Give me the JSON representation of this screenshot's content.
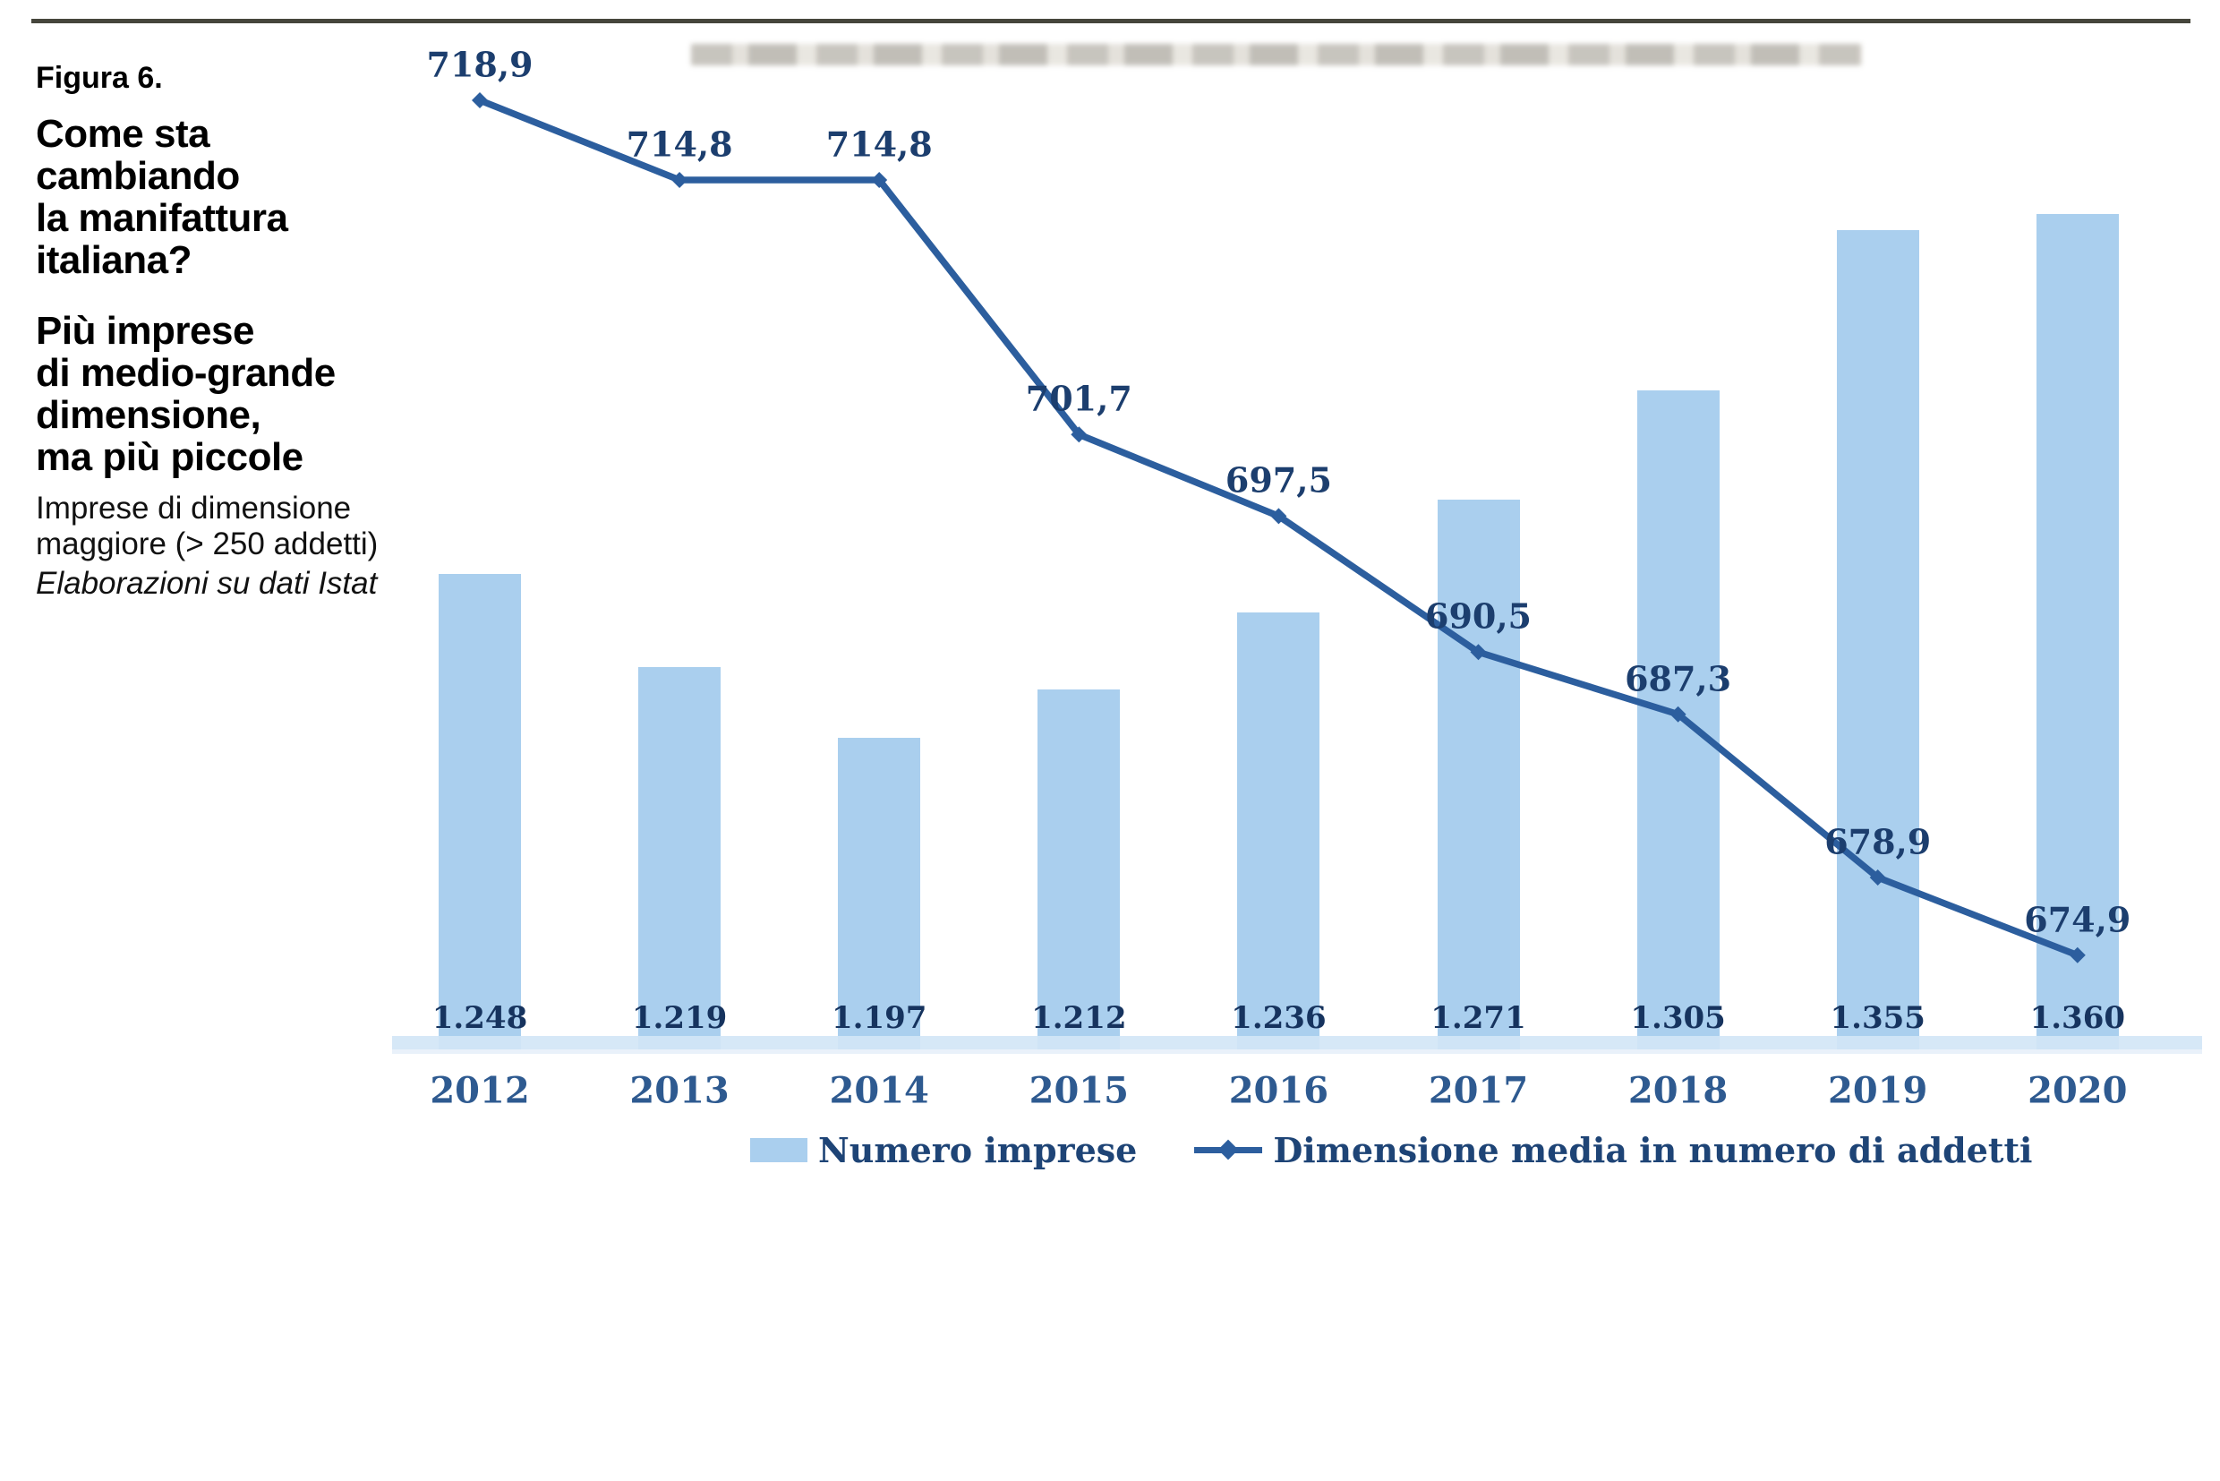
{
  "figure": {
    "label": "Figura 6.",
    "title_1": "Come sta\ncambiando\nla manifattura\nitaliana?",
    "title_2": "Più imprese\ndi medio-grande\ndimensione,\nma più piccole",
    "subtitle": "Imprese di dimensione\nmaggiore (> 250 addetti)",
    "source": "Elaborazioni su dati Istat"
  },
  "chart_data": {
    "type": "combo",
    "categories": [
      "2012",
      "2013",
      "2014",
      "2015",
      "2016",
      "2017",
      "2018",
      "2019",
      "2020"
    ],
    "series": [
      {
        "name": "Numero imprese",
        "type": "bar",
        "values": [
          1248,
          1219,
          1197,
          1212,
          1236,
          1271,
          1305,
          1355,
          1360
        ],
        "value_labels": [
          "1.248",
          "1.219",
          "1.197",
          "1.212",
          "1.236",
          "1.271",
          "1.305",
          "1.355",
          "1.360"
        ],
        "color": "#aacfee",
        "label_color": "#16335e"
      },
      {
        "name": "Dimensione media in numero di addetti",
        "type": "line",
        "values": [
          718.9,
          714.8,
          714.8,
          701.7,
          697.5,
          690.5,
          687.3,
          678.9,
          674.9
        ],
        "value_labels": [
          "718,9",
          "714,8",
          "714,8",
          "701,7",
          "697,5",
          "690,5",
          "687,3",
          "678,9",
          "674,9"
        ],
        "color": "#2c5e9e",
        "label_color": "#1c3e6e"
      }
    ],
    "title": "",
    "xlabel": "",
    "ylabel": "",
    "ylim_bars": [
      1100,
      1400
    ],
    "ylim_line": [
      672,
      722
    ],
    "grid": false,
    "legend_position": "bottom",
    "category_label_color": "#2e5a90",
    "axis_band_color": "#d3e6f6"
  }
}
